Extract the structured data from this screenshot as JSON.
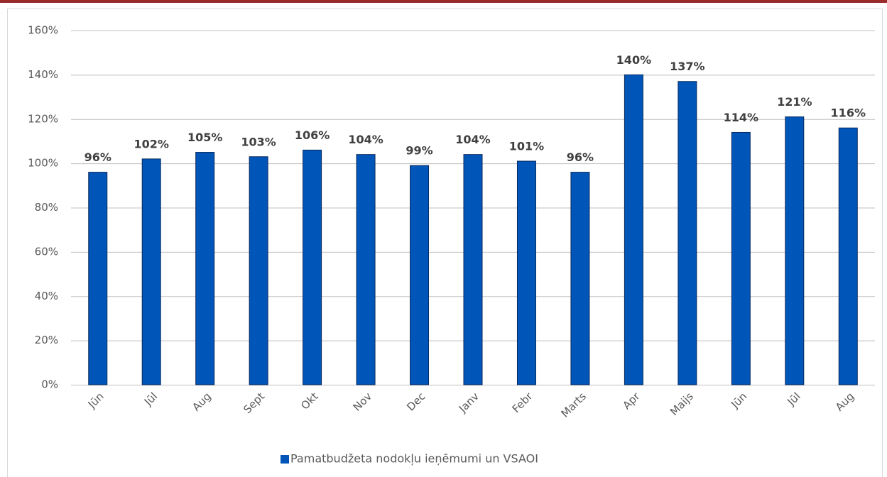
{
  "chart_data": {
    "type": "bar",
    "categories": [
      "Jūn",
      "Jūl",
      "Aug",
      "Sept",
      "Okt",
      "Nov",
      "Dec",
      "Janv",
      "Febr",
      "Marts",
      "Apr",
      "Maijs",
      "Jūn",
      "Jūl",
      "Aug"
    ],
    "series": [
      {
        "name": "Pamatbudžeta nodokļu ieņēmumi un VSAOI",
        "color": "#0055b8",
        "values": [
          96,
          102,
          105,
          103,
          106,
          104,
          99,
          104,
          101,
          96,
          140,
          137,
          114,
          121,
          116
        ],
        "value_labels": [
          "96%",
          "102%",
          "105%",
          "103%",
          "106%",
          "104%",
          "99%",
          "104%",
          "101%",
          "96%",
          "140%",
          "137%",
          "114%",
          "121%",
          "116%"
        ]
      }
    ],
    "ylim": [
      0,
      160
    ],
    "yticks": [
      {
        "value": 0,
        "label": "0%"
      },
      {
        "value": 20,
        "label": "20%"
      },
      {
        "value": 40,
        "label": "40%"
      },
      {
        "value": 60,
        "label": "60%"
      },
      {
        "value": 80,
        "label": "80%"
      },
      {
        "value": 100,
        "label": "100%"
      },
      {
        "value": 120,
        "label": "120%"
      },
      {
        "value": 140,
        "label": "140%"
      },
      {
        "value": 160,
        "label": "160%"
      }
    ],
    "grid": true,
    "legend": "bottom"
  }
}
